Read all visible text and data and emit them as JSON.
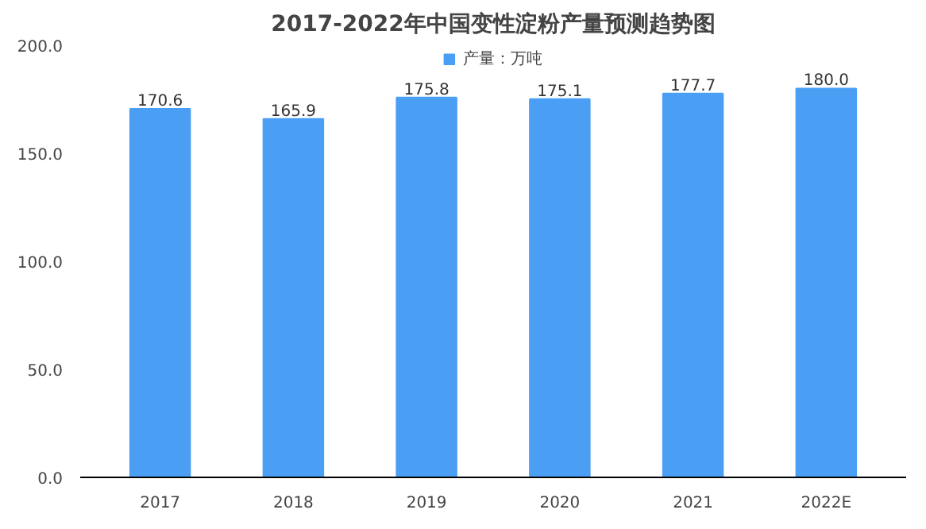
{
  "chart_data": {
    "type": "bar",
    "title": "2017-2022年中国变性淀粉产量预测趋势图",
    "categories": [
      "2017",
      "2018",
      "2019",
      "2020",
      "2021",
      "2022E"
    ],
    "series": [
      {
        "name": "产量：万吨",
        "color": "#4a9ff5",
        "values": [
          170.6,
          165.9,
          175.8,
          175.1,
          177.7,
          180.0
        ]
      }
    ],
    "value_labels": [
      "170.6",
      "165.9",
      "175.8",
      "175.1",
      "177.7",
      "180.0"
    ],
    "ylim": [
      0,
      200
    ],
    "yticks": [
      {
        "value": 0,
        "label": "0.0"
      },
      {
        "value": 50,
        "label": "50.0"
      },
      {
        "value": 100,
        "label": "100.0"
      },
      {
        "value": 150,
        "label": "150.0"
      },
      {
        "value": 200,
        "label": "200.0"
      }
    ],
    "grid": false,
    "legend": "top"
  }
}
